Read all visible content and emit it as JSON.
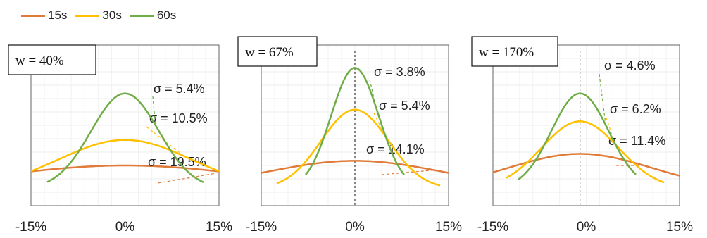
{
  "chart_data": [
    {
      "type": "line",
      "title": "w = 40%",
      "x_ticks": [
        "-15%",
        "0%",
        "15%"
      ],
      "xlim": [
        -15,
        15
      ],
      "series": [
        {
          "name": "15s",
          "x_range": [
            -15,
            15
          ],
          "mean": 0,
          "peak": 0.1,
          "sigma_label": "σ = 19.5%"
        },
        {
          "name": "30s",
          "x_range": [
            -15,
            15
          ],
          "mean": 0,
          "peak": 0.21,
          "sigma_label": "σ = 10.5%"
        },
        {
          "name": "60s",
          "x_range": [
            -15,
            15
          ],
          "mean": 0,
          "peak": 0.41,
          "sigma_label": "σ = 5.4%"
        }
      ]
    },
    {
      "type": "line",
      "title": "w = 67%",
      "x_ticks": [
        "-15%",
        "0%",
        "15%"
      ],
      "xlim": [
        -15,
        15
      ],
      "series": [
        {
          "name": "15s",
          "x_range": [
            -15,
            15
          ],
          "mean": 0,
          "peak": 0.12,
          "sigma_label": "σ = 14.1%"
        },
        {
          "name": "30s",
          "x_range": [
            -15,
            15
          ],
          "mean": 0,
          "peak": 0.34,
          "sigma_label": "σ = 5.4%"
        },
        {
          "name": "60s",
          "x_range": [
            -15,
            15
          ],
          "mean": 0,
          "peak": 0.52,
          "sigma_label": "σ = 3.8%"
        }
      ]
    },
    {
      "type": "line",
      "title": "w = 170%",
      "x_ticks": [
        "-15%",
        "0%",
        "15%"
      ],
      "xlim": [
        -15,
        15
      ],
      "series": [
        {
          "name": "15s",
          "x_range": [
            -15,
            15
          ],
          "mean": -1,
          "peak": 0.15,
          "sigma_label": "σ = 11.4%"
        },
        {
          "name": "30s",
          "x_range": [
            -15,
            15
          ],
          "mean": -1,
          "peak": 0.29,
          "sigma_label": "σ = 6.2%"
        },
        {
          "name": "60s",
          "x_range": [
            -15,
            15
          ],
          "mean": -1,
          "peak": 0.41,
          "sigma_label": "σ = 4.6%"
        }
      ]
    }
  ],
  "legend": [
    {
      "name": "15s",
      "color": "#E07B39"
    },
    {
      "name": "30s",
      "color": "#FFC000"
    },
    {
      "name": "60s",
      "color": "#70AD47"
    }
  ]
}
